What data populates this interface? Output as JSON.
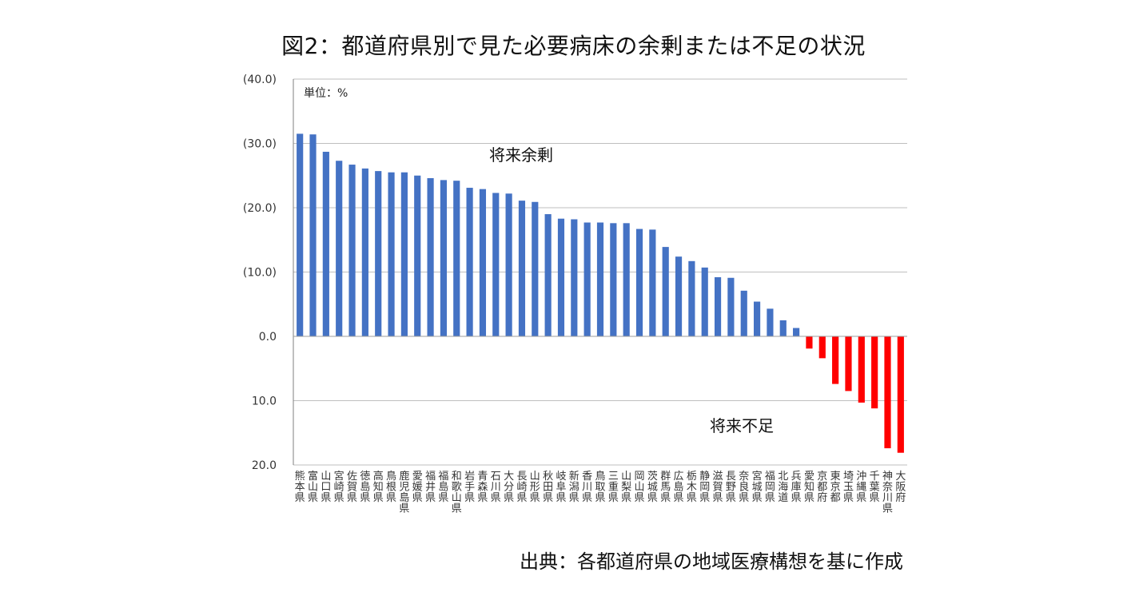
{
  "title": "図2：都道府県別で見た必要病床の余剰または不足の状況",
  "source": "出典：各都道府県の地域医療構想を基に作成",
  "chart_data": {
    "type": "bar",
    "unit_label": "単位：%",
    "annotations": [
      "将来余剰",
      "将来不足"
    ],
    "categories": [
      "熊本県",
      "富山県",
      "山口県",
      "宮崎県",
      "佐賀県",
      "徳島県",
      "高知県",
      "鳥根県",
      "鹿児島県",
      "愛媛県",
      "福井県",
      "福島県",
      "和歌山県",
      "岩手県",
      "青森県",
      "石川県",
      "大分県",
      "長崎県",
      "山形県",
      "秋田県",
      "岐阜県",
      "新潟県",
      "香川県",
      "鳥取県",
      "三重県",
      "山梨県",
      "岡山県",
      "茨城県",
      "群馬県",
      "広島県",
      "栃木県",
      "静岡県",
      "滋賀県",
      "長野県",
      "奈良県",
      "宮城県",
      "福岡県",
      "北海道",
      "兵庫県",
      "愛知県",
      "京都府",
      "東京都",
      "埼玉県",
      "沖縄県",
      "千葉県",
      "神奈川県",
      "大阪府"
    ],
    "values": [
      31.5,
      31.4,
      28.7,
      27.3,
      26.7,
      26.1,
      25.7,
      25.5,
      25.5,
      25.0,
      24.6,
      24.3,
      24.2,
      23.1,
      22.9,
      22.3,
      22.2,
      21.1,
      20.9,
      19.0,
      18.3,
      18.2,
      17.7,
      17.7,
      17.6,
      17.6,
      16.7,
      16.6,
      13.9,
      12.4,
      11.7,
      10.7,
      9.2,
      9.1,
      7.1,
      5.4,
      4.3,
      2.5,
      1.3,
      -1.9,
      -3.4,
      -7.4,
      -8.5,
      -10.3,
      -11.2,
      -17.4,
      -18.1
    ],
    "ylim": [
      -20,
      40
    ],
    "yticks": [
      40,
      30,
      20,
      10,
      0,
      -10,
      -20
    ],
    "ytick_labels": [
      "(40.0)",
      "(30.0)",
      "(20.0)",
      "(10.0)",
      "0.0",
      "10.0",
      "20.0"
    ],
    "colors": {
      "positive": "#4472C4",
      "negative": "#FF0000",
      "grid": "#BFBFBF",
      "axis": "#7F7F7F"
    },
    "grid": true
  }
}
